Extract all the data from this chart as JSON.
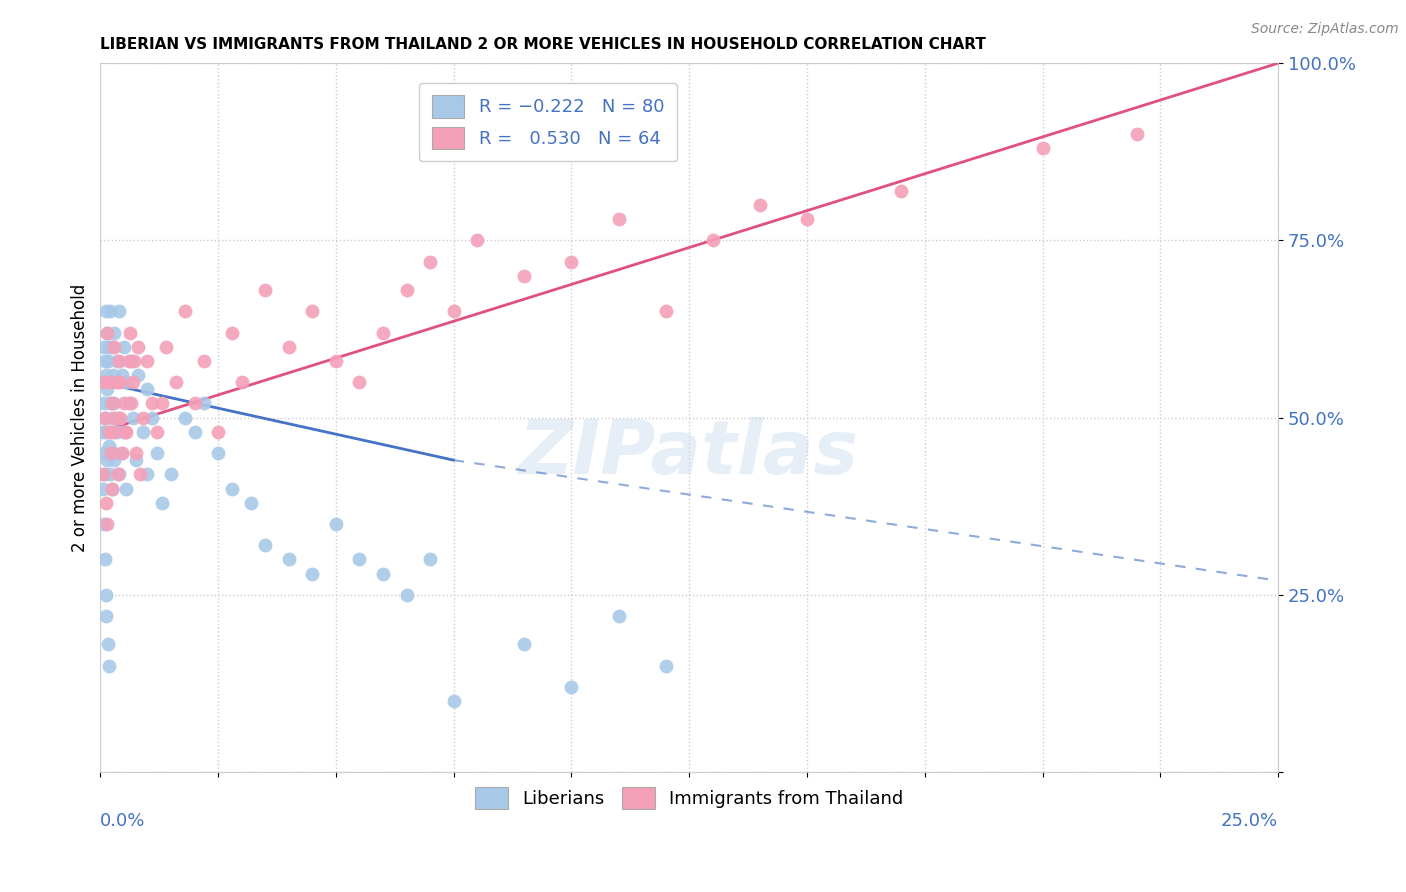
{
  "title": "LIBERIAN VS IMMIGRANTS FROM THAILAND 2 OR MORE VEHICLES IN HOUSEHOLD CORRELATION CHART",
  "source": "Source: ZipAtlas.com",
  "ylabel": "2 or more Vehicles in Household",
  "xlim": [
    0.0,
    25.0
  ],
  "ylim": [
    0.0,
    100.0
  ],
  "color_liberian": "#a8c8e8",
  "color_thailand": "#f4a0b8",
  "color_line_liberian": "#4472C4",
  "color_line_thailand": "#e05080",
  "watermark": "ZIPatlas",
  "lib_line_x0": 0.0,
  "lib_line_y0": 55.0,
  "lib_line_x1": 7.5,
  "lib_line_y1": 44.0,
  "lib_dash_x0": 7.5,
  "lib_dash_y0": 44.0,
  "lib_dash_x1": 25.0,
  "lib_dash_y1": 27.0,
  "thai_line_x0": 0.0,
  "thai_line_y0": 48.0,
  "thai_line_x1": 25.0,
  "thai_line_y1": 100.0,
  "liberian_x": [
    0.05,
    0.05,
    0.07,
    0.08,
    0.08,
    0.1,
    0.1,
    0.1,
    0.12,
    0.12,
    0.13,
    0.15,
    0.15,
    0.15,
    0.17,
    0.18,
    0.18,
    0.2,
    0.2,
    0.2,
    0.22,
    0.22,
    0.25,
    0.25,
    0.25,
    0.27,
    0.28,
    0.3,
    0.3,
    0.3,
    0.35,
    0.35,
    0.38,
    0.4,
    0.4,
    0.4,
    0.45,
    0.45,
    0.5,
    0.5,
    0.55,
    0.55,
    0.6,
    0.65,
    0.7,
    0.75,
    0.8,
    0.9,
    1.0,
    1.0,
    1.1,
    1.2,
    1.3,
    1.5,
    1.8,
    2.0,
    2.2,
    2.5,
    2.8,
    3.2,
    3.5,
    4.0,
    4.5,
    5.0,
    5.5,
    6.0,
    6.5,
    7.0,
    7.5,
    9.0,
    10.0,
    11.0,
    12.0,
    0.05,
    0.07,
    0.09,
    0.11,
    0.13,
    0.16,
    0.19
  ],
  "liberian_y": [
    55,
    48,
    60,
    52,
    45,
    58,
    50,
    42,
    65,
    56,
    48,
    62,
    54,
    44,
    58,
    46,
    60,
    52,
    42,
    65,
    55,
    48,
    60,
    50,
    40,
    56,
    45,
    52,
    62,
    44,
    58,
    48,
    55,
    50,
    65,
    42,
    56,
    45,
    60,
    48,
    55,
    40,
    52,
    58,
    50,
    44,
    56,
    48,
    54,
    42,
    50,
    45,
    38,
    42,
    50,
    48,
    52,
    45,
    40,
    38,
    32,
    30,
    28,
    35,
    30,
    28,
    25,
    30,
    10,
    18,
    12,
    22,
    15,
    40,
    35,
    30,
    25,
    22,
    18,
    15
  ],
  "thailand_x": [
    0.05,
    0.07,
    0.1,
    0.12,
    0.15,
    0.18,
    0.2,
    0.22,
    0.25,
    0.28,
    0.3,
    0.35,
    0.38,
    0.4,
    0.42,
    0.45,
    0.5,
    0.55,
    0.6,
    0.65,
    0.7,
    0.75,
    0.8,
    0.9,
    1.0,
    1.1,
    1.2,
    1.4,
    1.6,
    1.8,
    2.0,
    2.2,
    2.5,
    2.8,
    3.0,
    3.5,
    4.0,
    4.5,
    5.0,
    5.5,
    6.0,
    6.5,
    7.0,
    7.5,
    8.0,
    9.0,
    10.0,
    11.0,
    12.0,
    13.0,
    14.0,
    15.0,
    17.0,
    20.0,
    22.0,
    0.15,
    0.25,
    0.32,
    0.42,
    0.52,
    0.62,
    0.72,
    0.85,
    1.3
  ],
  "thailand_y": [
    42,
    55,
    50,
    38,
    62,
    48,
    55,
    45,
    52,
    60,
    48,
    55,
    42,
    58,
    50,
    45,
    52,
    48,
    58,
    52,
    55,
    45,
    60,
    50,
    58,
    52,
    48,
    60,
    55,
    65,
    52,
    58,
    48,
    62,
    55,
    68,
    60,
    65,
    58,
    55,
    62,
    68,
    72,
    65,
    75,
    70,
    72,
    78,
    65,
    75,
    80,
    78,
    82,
    88,
    90,
    35,
    40,
    50,
    55,
    48,
    62,
    58,
    42,
    52
  ]
}
